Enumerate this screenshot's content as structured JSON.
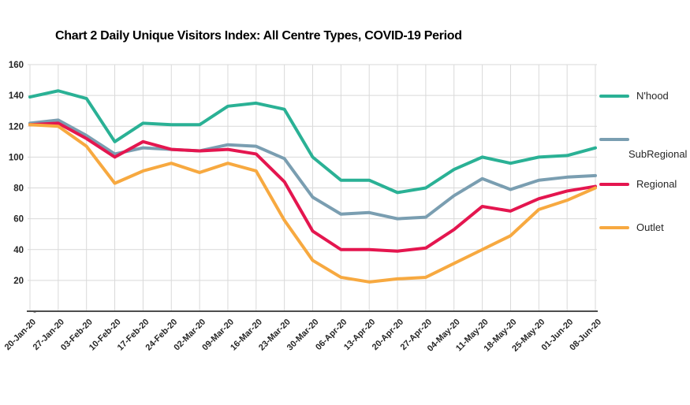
{
  "chart_data": {
    "type": "line",
    "title": "Chart 2 Daily Unique Visitors Index: All Centre Types, COVID-19 Period",
    "categories": [
      "20-Jan-20",
      "27-Jan-20",
      "03-Feb-20",
      "10-Feb-20",
      "17-Feb-20",
      "24-Feb-20",
      "02-Mar-20",
      "09-Mar-20",
      "16-Mar-20",
      "23-Mar-20",
      "30-Mar-20",
      "06-Apr-20",
      "13-Apr-20",
      "20-Apr-20",
      "27-Apr-20",
      "04-May-20",
      "11-May-20",
      "18-May-20",
      "25-May-20",
      "01-Jun-20",
      "08-Jun-20"
    ],
    "series": [
      {
        "name": "N'hood",
        "color": "#2AB195",
        "values": [
          139,
          143,
          138,
          110,
          122,
          121,
          121,
          133,
          135,
          131,
          100,
          85,
          85,
          77,
          80,
          92,
          100,
          96,
          100,
          101,
          106
        ]
      },
      {
        "name": "SubRegional",
        "color": "#7A9EB1",
        "values": [
          122,
          124,
          114,
          102,
          106,
          105,
          104,
          108,
          107,
          99,
          74,
          63,
          64,
          60,
          61,
          75,
          86,
          79,
          85,
          87,
          88
        ]
      },
      {
        "name": "Regional",
        "color": "#E4164F",
        "values": [
          121,
          122,
          112,
          100,
          110,
          105,
          104,
          105,
          102,
          84,
          52,
          40,
          40,
          39,
          41,
          53,
          68,
          65,
          73,
          78,
          81
        ]
      },
      {
        "name": "Outlet",
        "color": "#F7A940",
        "values": [
          121,
          120,
          107,
          83,
          91,
          96,
          90,
          96,
          91,
          59,
          33,
          22,
          19,
          21,
          22,
          31,
          40,
          49,
          66,
          72,
          80
        ]
      }
    ],
    "ylim": [
      0,
      160
    ],
    "y_ticks": [
      {
        "label": "160",
        "value": 160
      },
      {
        "label": "140",
        "value": 140
      },
      {
        "label": "120",
        "value": 120
      },
      {
        "label": "100",
        "value": 100
      },
      {
        "label": "80",
        "value": 80
      },
      {
        "label": "60",
        "value": 60
      },
      {
        "label": "40",
        "value": 40
      },
      {
        "label": "20",
        "value": 20
      },
      {
        "label": "-",
        "value": 0
      }
    ],
    "grid": "on",
    "legend_position": "right",
    "colors": {
      "background": "#FFFFFF",
      "gridline": "#D9D9D9",
      "axis_line": "#4D4D4D",
      "tick_text": "#262626",
      "title_text": "#000000"
    }
  }
}
